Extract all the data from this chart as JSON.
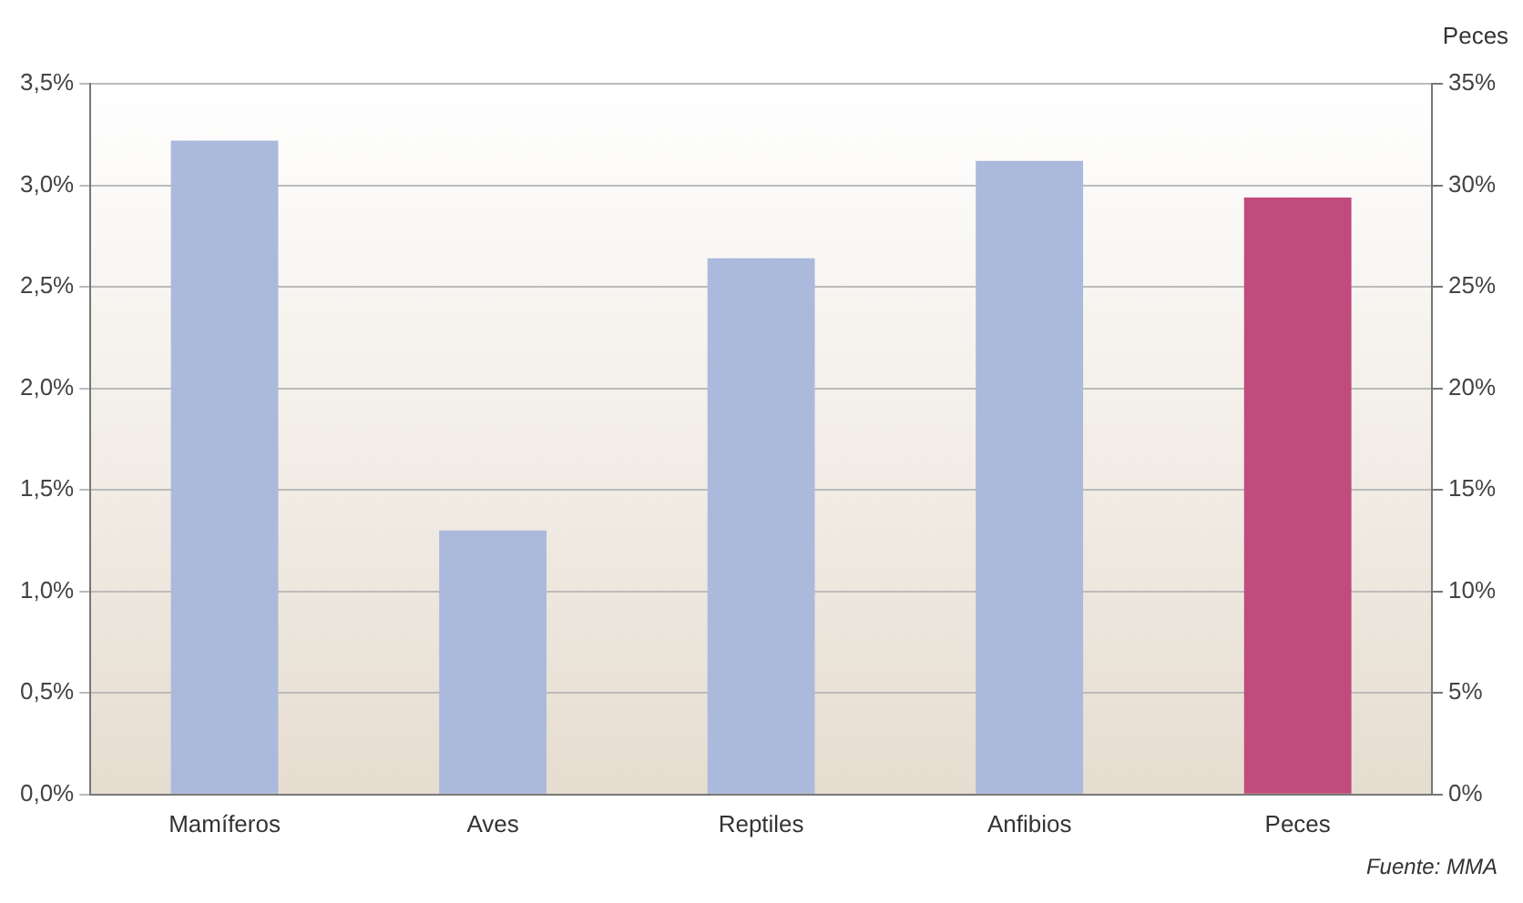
{
  "chart_data": {
    "type": "bar",
    "categories": [
      "Mamíferos",
      "Aves",
      "Reptiles",
      "Anfibios",
      "Peces"
    ],
    "series": [
      {
        "color": "#abb9dc",
        "values": [
          3.22,
          1.3,
          2.64,
          3.12,
          null
        ]
      },
      {
        "color": "#c04b7c",
        "axis": "y2",
        "values": [
          null,
          null,
          null,
          null,
          29.4
        ]
      }
    ],
    "y2label": "Peces",
    "ylim": [
      0,
      3.5
    ],
    "yticks": [
      {
        "value": 0,
        "label": "0,0%"
      },
      {
        "value": 0.5,
        "label": "0,5%"
      },
      {
        "value": 1,
        "label": "1,0%"
      },
      {
        "value": 1.5,
        "label": "1,5%"
      },
      {
        "value": 2,
        "label": "2,0%"
      },
      {
        "value": 2.5,
        "label": "2,5%"
      },
      {
        "value": 3,
        "label": "3,0%"
      },
      {
        "value": 3.5,
        "label": "3,5%"
      }
    ],
    "y2lim": [
      0,
      35
    ],
    "y2ticks": [
      {
        "value": 0,
        "label": "0%"
      },
      {
        "value": 5,
        "label": "5%"
      },
      {
        "value": 10,
        "label": "10%"
      },
      {
        "value": 15,
        "label": "15%"
      },
      {
        "value": 20,
        "label": "20%"
      },
      {
        "value": 25,
        "label": "25%"
      },
      {
        "value": 30,
        "label": "30%"
      },
      {
        "value": 35,
        "label": "35%"
      }
    ],
    "grid": "y",
    "legend": false,
    "annotations": [
      "Fuente: MMA"
    ]
  }
}
